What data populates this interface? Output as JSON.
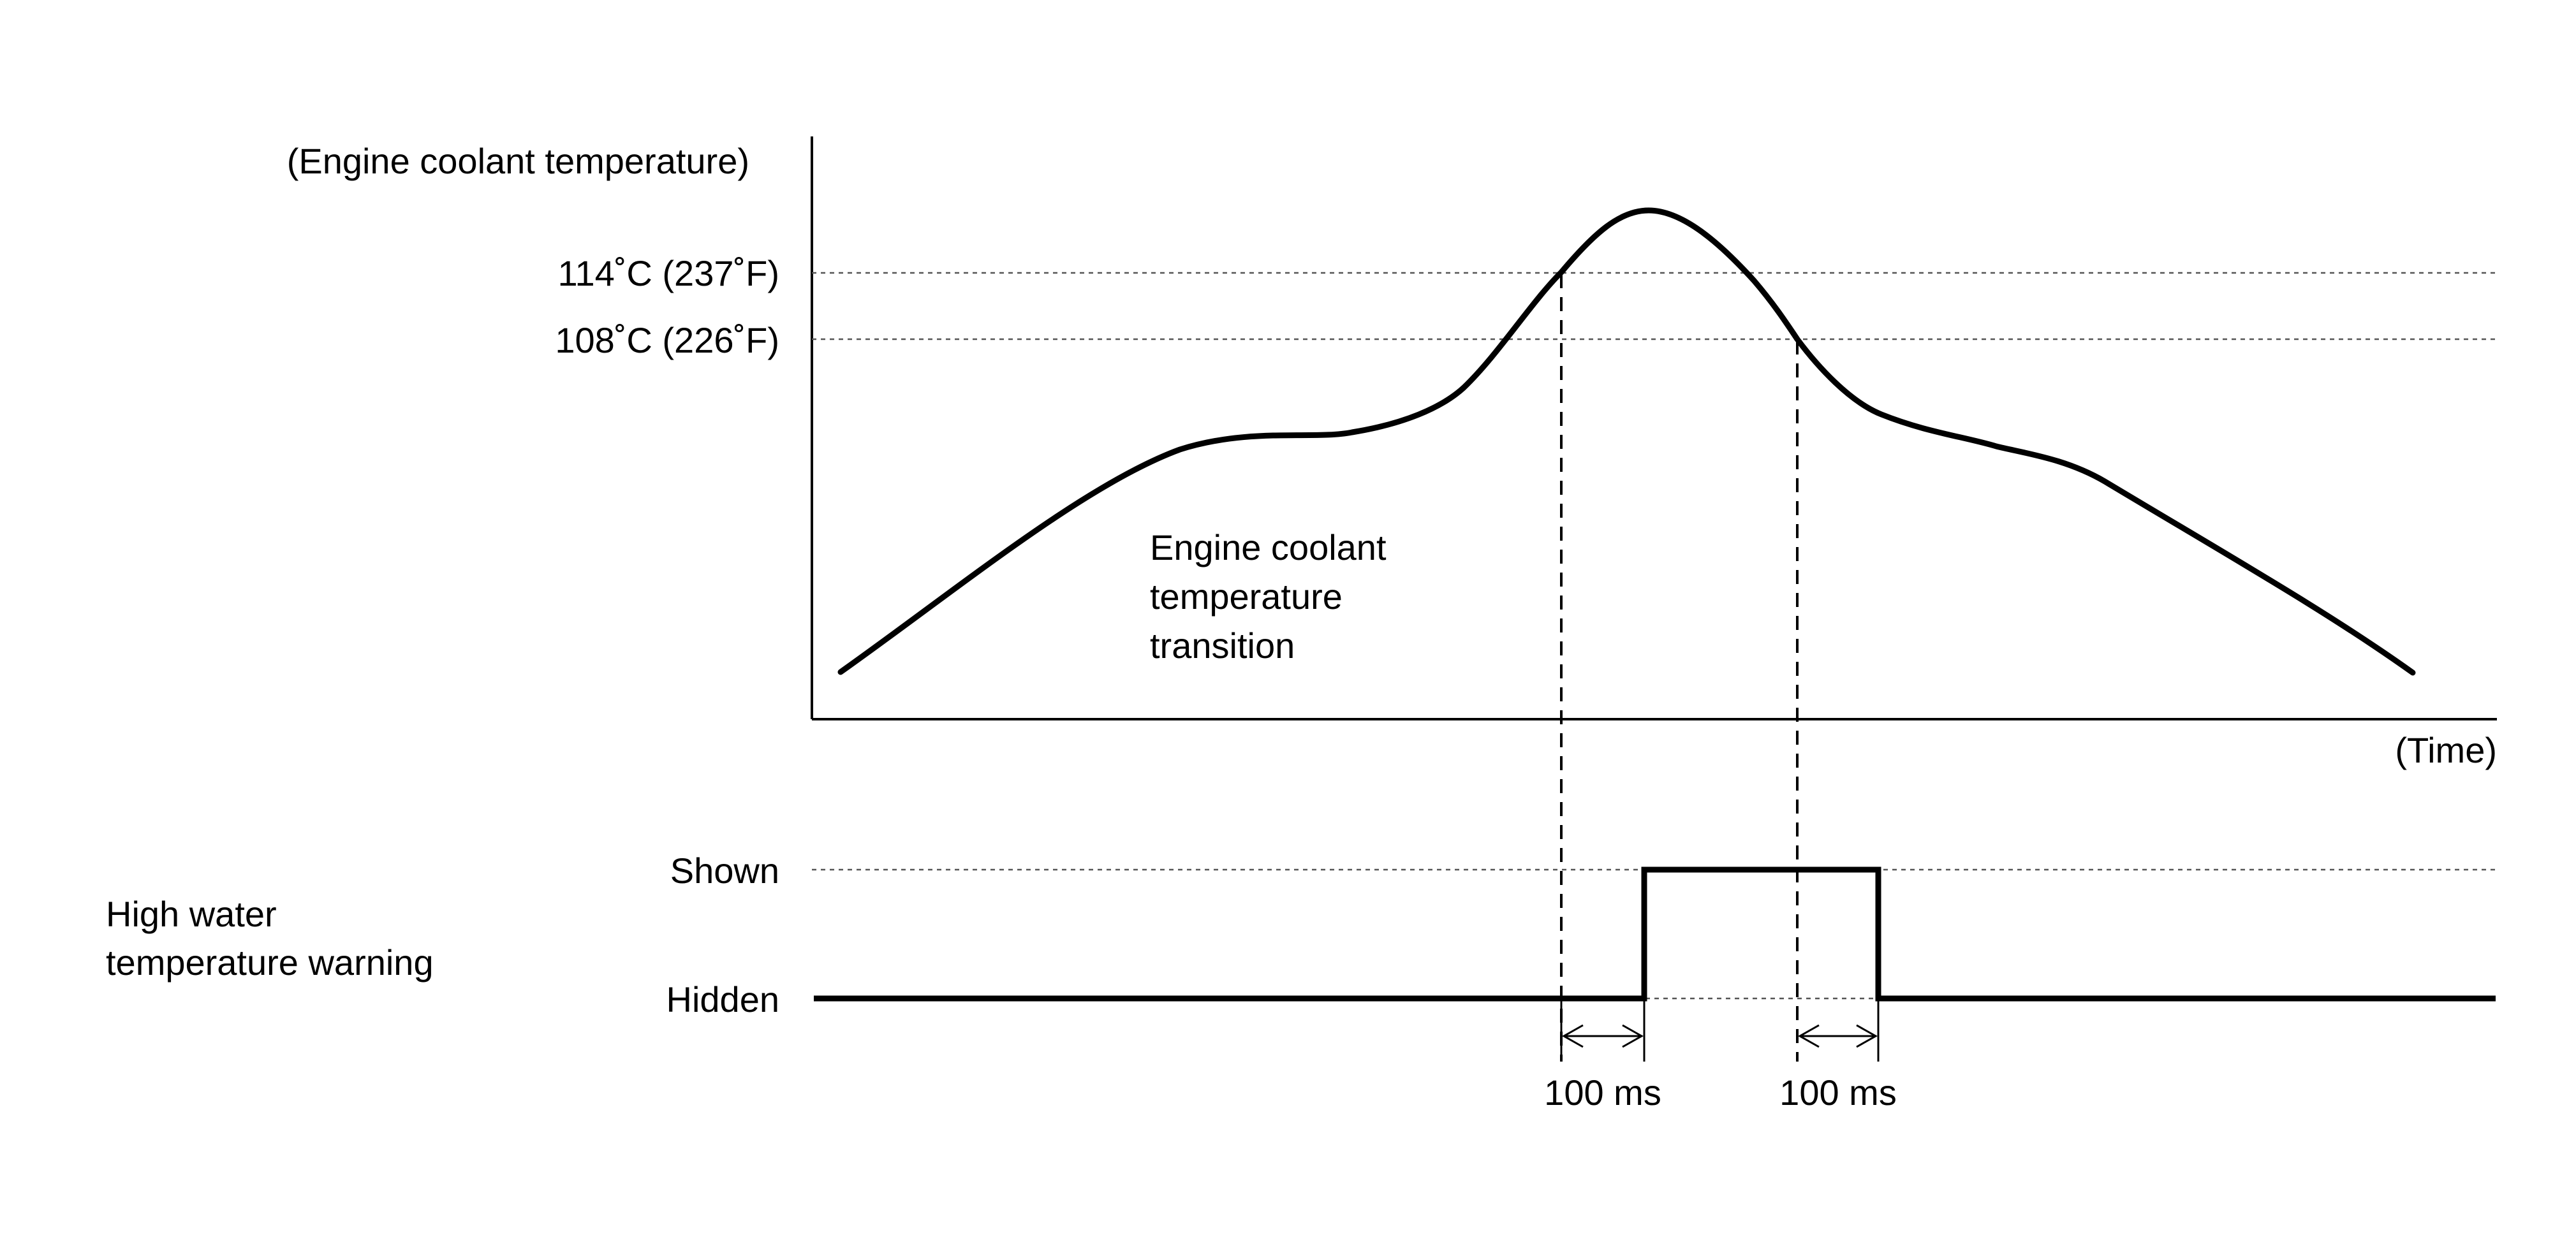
{
  "temperature_axis": {
    "title": "(Engine coolant temperature)",
    "threshold_high": "114˚C (237˚F)",
    "threshold_low": "108˚C (226˚F)"
  },
  "time_axis": {
    "label": "(Time)"
  },
  "curve": {
    "label_line1": "Engine coolant",
    "label_line2": "temperature",
    "label_line3": "transition"
  },
  "warning": {
    "title_line1": "High water",
    "title_line2": "temperature warning",
    "state_shown": "Shown",
    "state_hidden": "Hidden"
  },
  "delays": {
    "on_delay": "100 ms",
    "off_delay": "100 ms"
  }
}
